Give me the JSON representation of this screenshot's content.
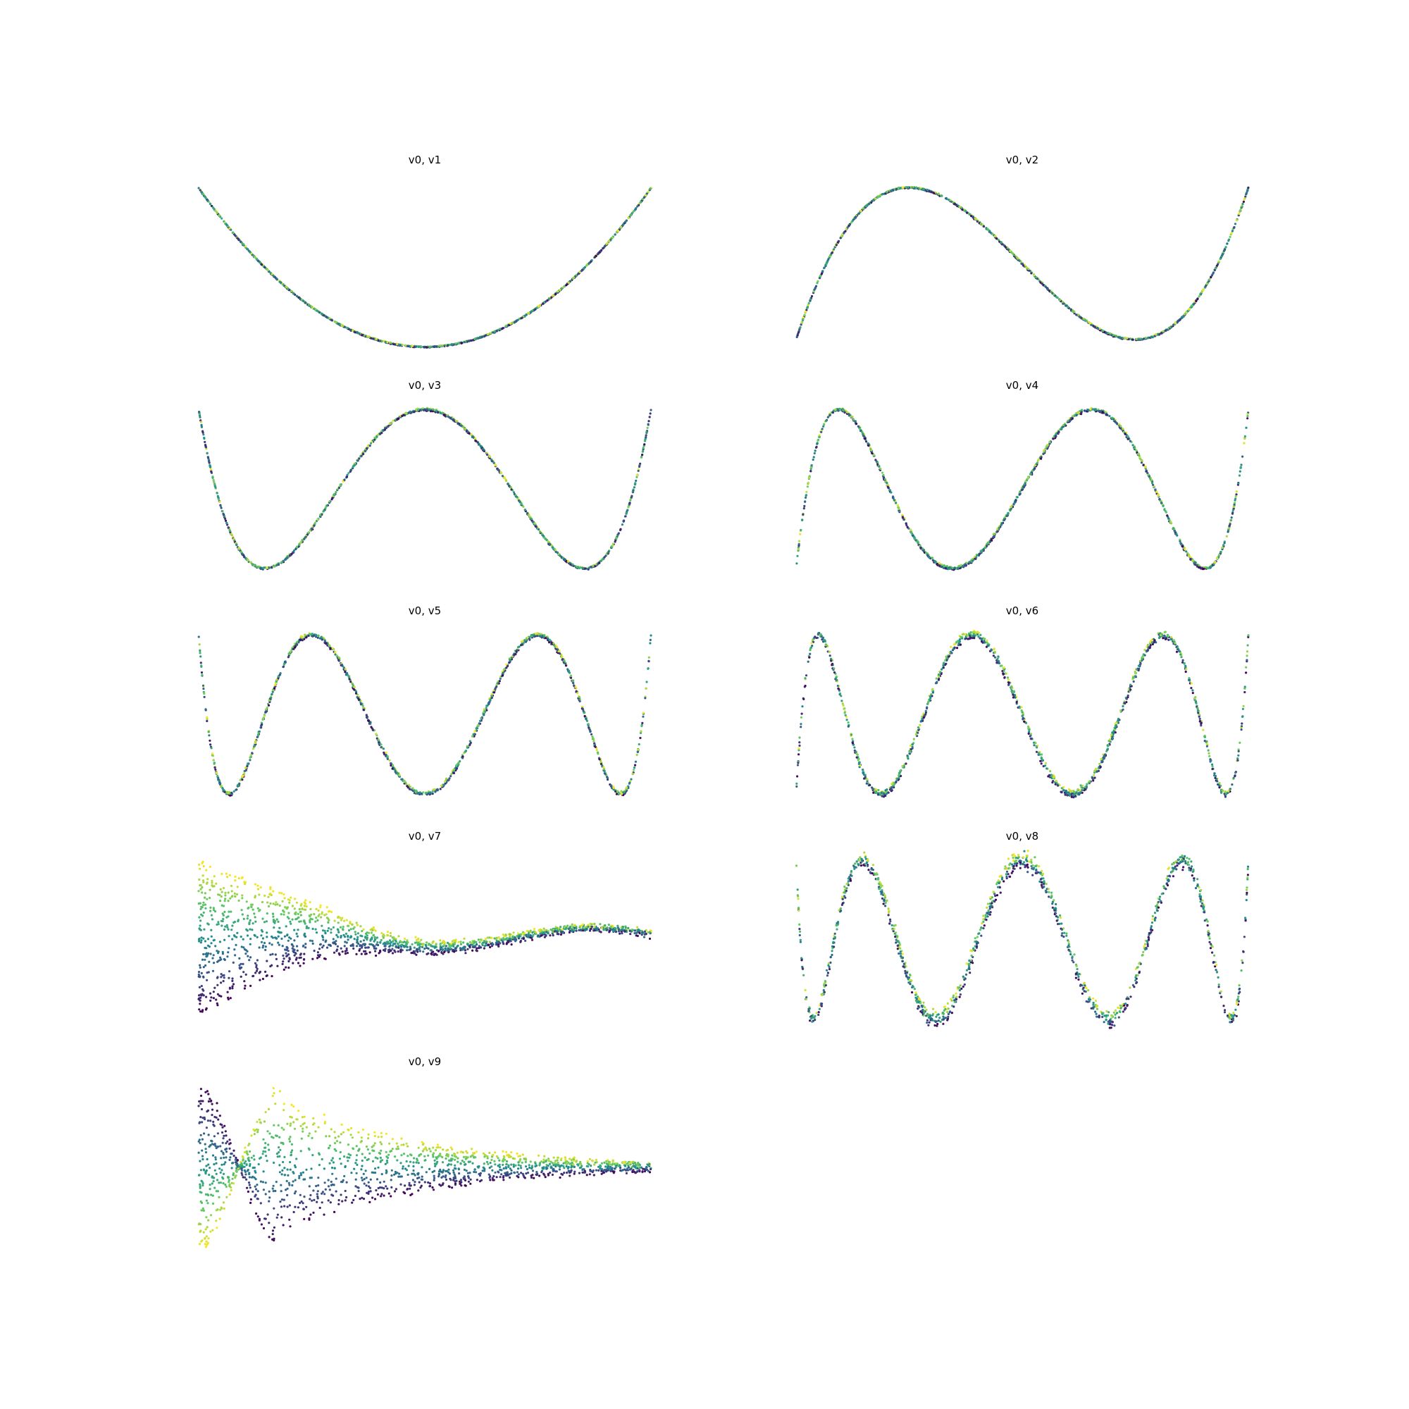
{
  "figure": {
    "background": "#ffffff",
    "colormap": [
      "#440154",
      "#3b528b",
      "#21918c",
      "#5ec962",
      "#fde725"
    ],
    "axes_visible": false
  },
  "chart_data": [
    {
      "type": "scatter",
      "title": "v0, v1",
      "kind": "curve",
      "degree": 2,
      "xlim": [
        0,
        1
      ],
      "ylim": [
        -1.05,
        1.15
      ],
      "spread": 0.002
    },
    {
      "type": "scatter",
      "title": "v0, v2",
      "kind": "curve",
      "degree": 3,
      "xlim": [
        0,
        1
      ],
      "ylim": [
        -1.15,
        1.15
      ],
      "spread": 0.003
    },
    {
      "type": "scatter",
      "title": "v0, v3",
      "kind": "curve",
      "degree": 4,
      "xlim": [
        0,
        1
      ],
      "ylim": [
        -1.1,
        1.1
      ],
      "spread": 0.004
    },
    {
      "type": "scatter",
      "title": "v0, v4",
      "kind": "curve",
      "degree": 5,
      "xlim": [
        0,
        1
      ],
      "ylim": [
        -1.1,
        1.1
      ],
      "spread": 0.006
    },
    {
      "type": "scatter",
      "title": "v0, v5",
      "kind": "curve",
      "degree": 6,
      "xlim": [
        0,
        1
      ],
      "ylim": [
        -1.1,
        1.1
      ],
      "spread": 0.008
    },
    {
      "type": "scatter",
      "title": "v0, v6",
      "kind": "curve",
      "degree": 7,
      "xlim": [
        0,
        1
      ],
      "ylim": [
        -1.1,
        1.1
      ],
      "spread": 0.015
    },
    {
      "type": "scatter",
      "title": "v0, v7",
      "kind": "fan",
      "xlim": [
        0,
        1
      ],
      "ylim": [
        -1,
        1
      ],
      "spread": 0.5
    },
    {
      "type": "scatter",
      "title": "v0, v8",
      "kind": "curve",
      "degree": 8,
      "xlim": [
        0,
        1
      ],
      "ylim": [
        -1.1,
        1.1
      ],
      "spread": 0.03
    },
    {
      "type": "scatter",
      "title": "v0, v9",
      "kind": "twist",
      "xlim": [
        0,
        1
      ],
      "ylim": [
        -1,
        1
      ],
      "spread": 0.5
    }
  ]
}
